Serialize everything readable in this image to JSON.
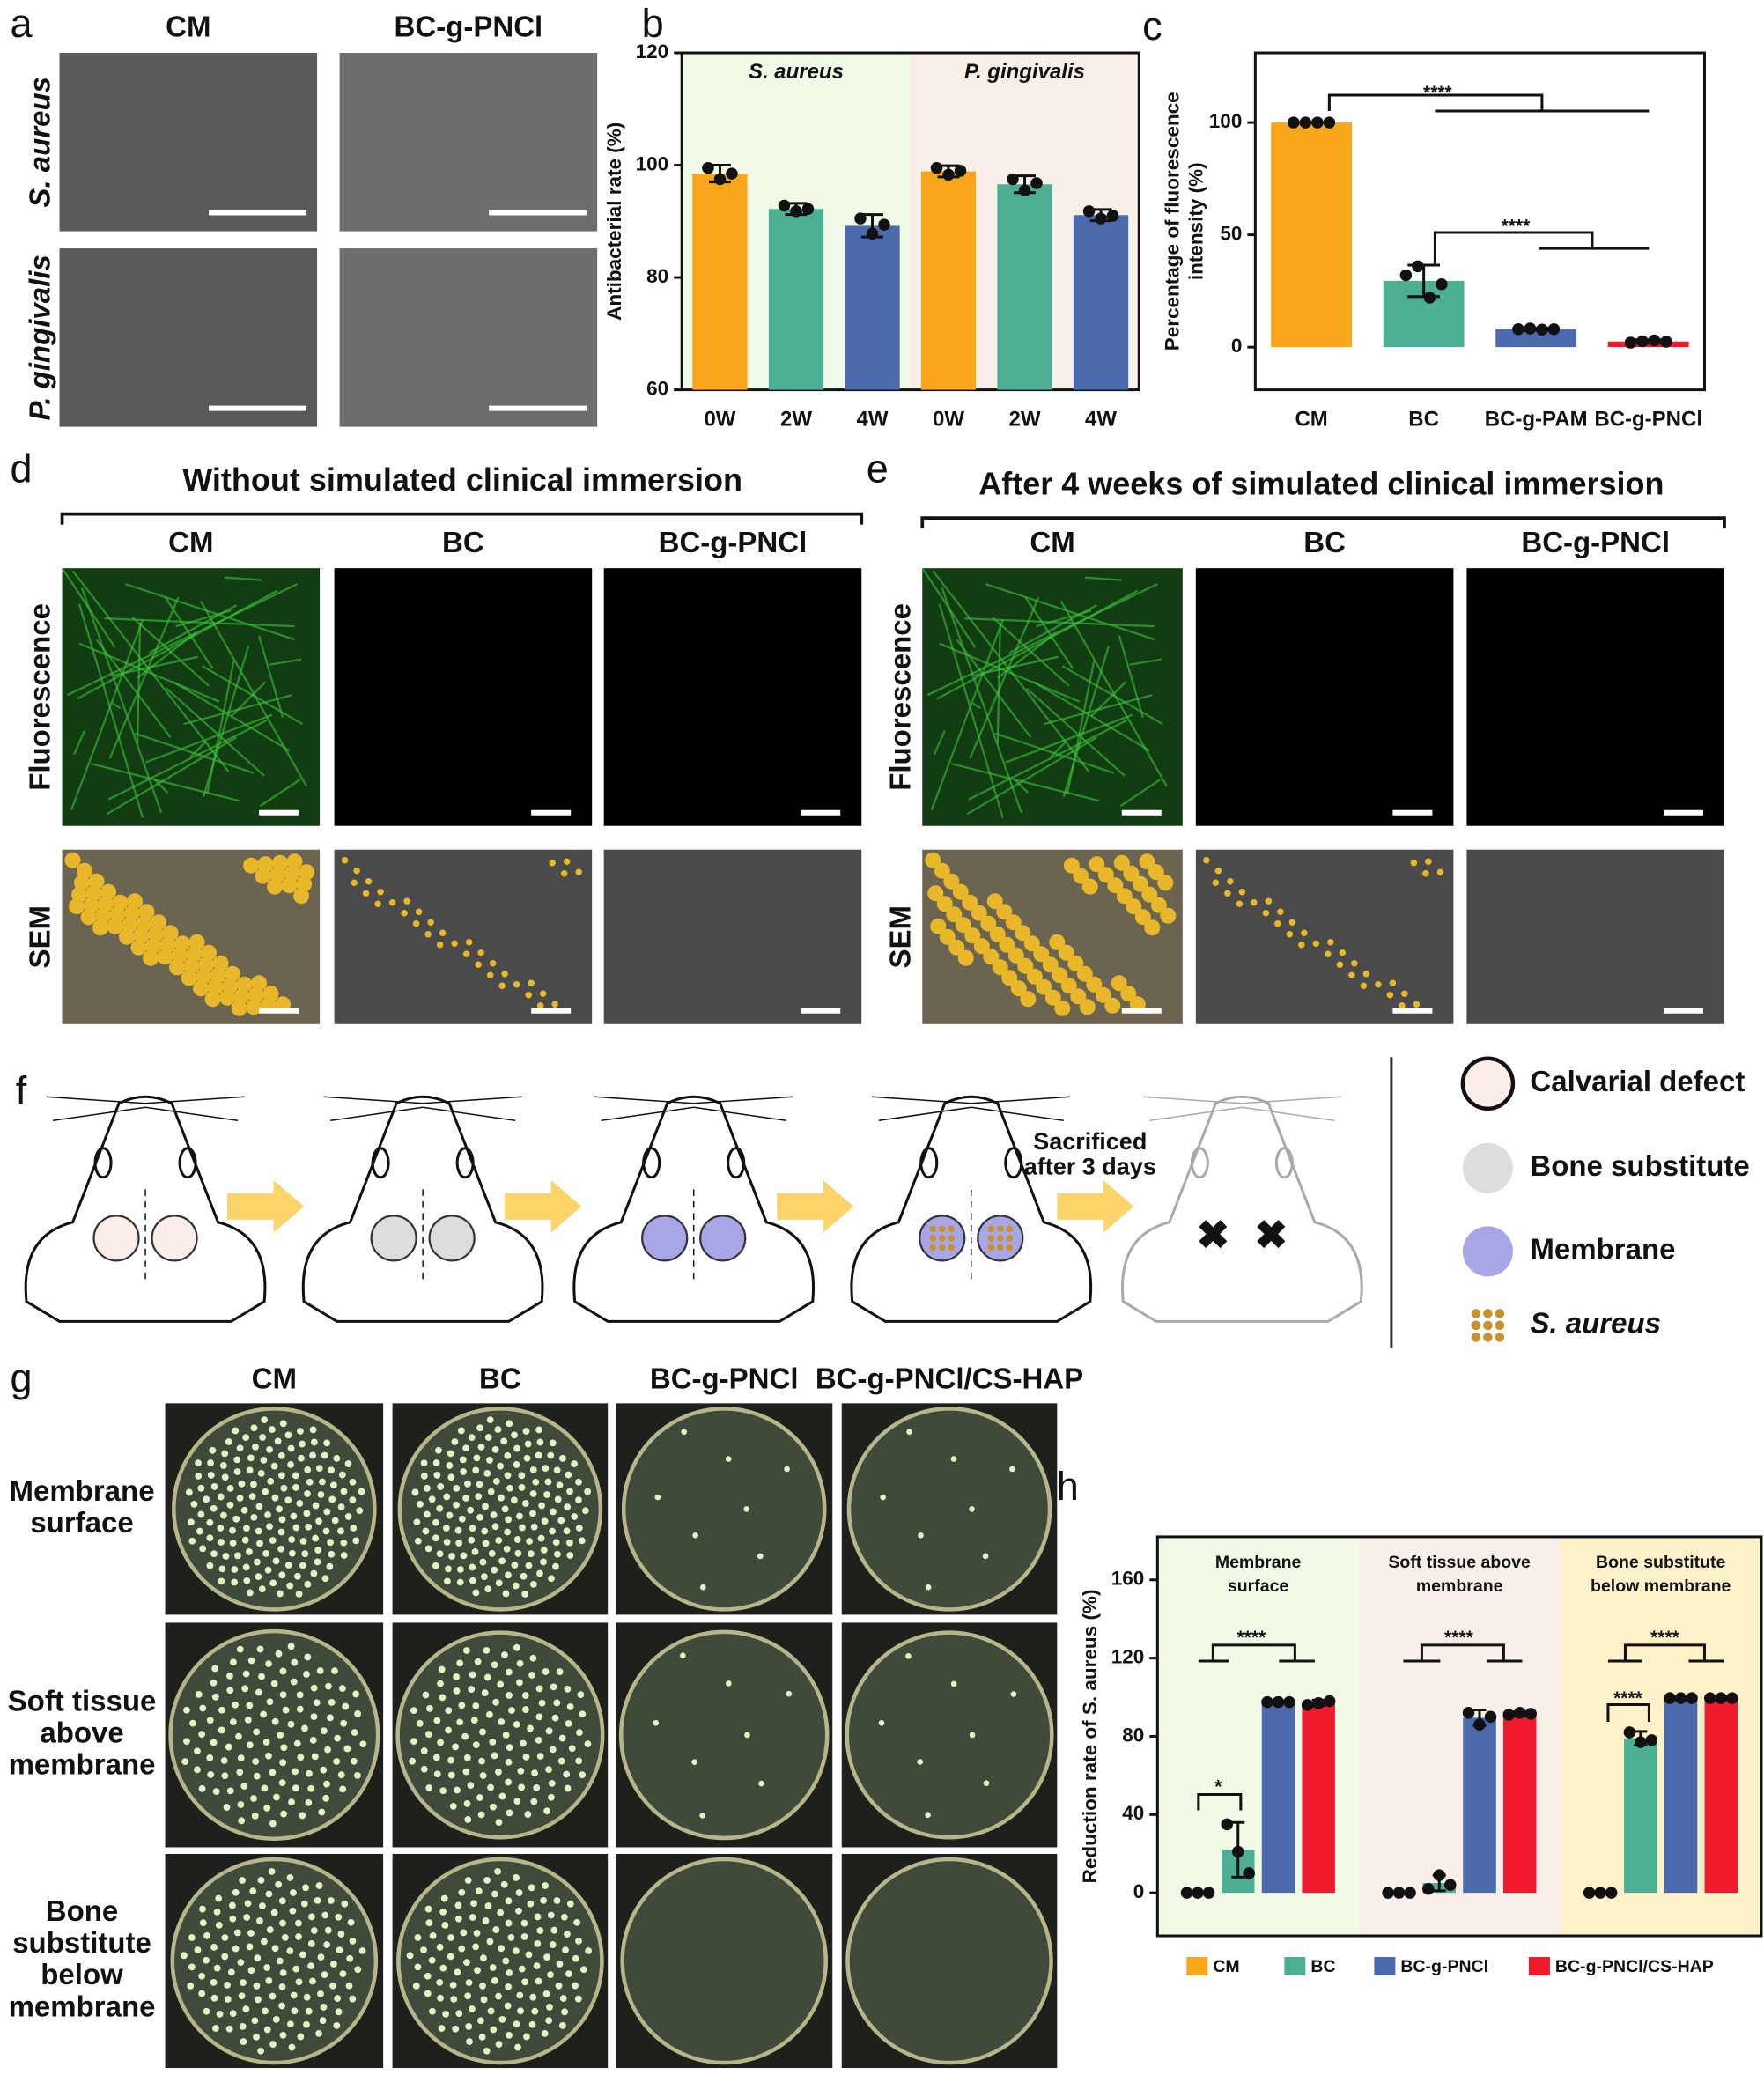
{
  "panel_labels": [
    "a",
    "b",
    "c",
    "d",
    "e",
    "f",
    "g",
    "h"
  ],
  "a": {
    "columns": [
      "CM",
      "BC-g-PNCl"
    ],
    "rows": [
      "S. aureus",
      "P. gingivalis"
    ]
  },
  "d": {
    "title": "Without simulated clinical immersion",
    "columns": [
      "CM",
      "BC",
      "BC-g-PNCl"
    ],
    "rows": [
      "Fluorescence",
      "SEM"
    ]
  },
  "e": {
    "title": "After 4 weeks of simulated clinical immersion",
    "columns": [
      "CM",
      "BC",
      "BC-g-PNCl"
    ],
    "rows": [
      "Fluorescence",
      "SEM"
    ]
  },
  "f": {
    "step_label": [
      "Sacrificed",
      "after 3 days"
    ],
    "legend": [
      "Calvarial defect",
      "Bone substitute",
      "Membrane",
      "S. aureus"
    ]
  },
  "g": {
    "columns": [
      "CM",
      "BC",
      "BC-g-PNCl",
      "BC-g-PNCl/CS-HAP"
    ],
    "rows": [
      [
        "Membrane",
        "surface"
      ],
      [
        "Soft tissue",
        "above",
        "membrane"
      ],
      [
        "Bone",
        "substitute",
        "below",
        "membrane"
      ]
    ]
  },
  "chart_data": [
    {
      "type": "bar",
      "ylabel": "Antibacterial rate (%)",
      "groups": [
        "S. aureus",
        "P. gingivalis"
      ],
      "backgrounds": [
        "#f1fae6",
        "#f8efe9"
      ],
      "categories": [
        "0W",
        "2W",
        "4W",
        "0W",
        "2W",
        "4W"
      ],
      "values": [
        98.5,
        92.2,
        89.2,
        98.9,
        96.6,
        91.1
      ],
      "errors": [
        1.5,
        1,
        2,
        1,
        1.5,
        1
      ],
      "points": [
        [
          99.5,
          97.5,
          98.5
        ],
        [
          92.8,
          91.8,
          92.2
        ],
        [
          90.5,
          87.8,
          89.4
        ],
        [
          99.5,
          98.3,
          99
        ],
        [
          97.5,
          95.5,
          96.8
        ],
        [
          91.8,
          90.5,
          91
        ]
      ],
      "colors": [
        "#f9a61a",
        "#4caf94",
        "#4a6aad",
        "#f9a61a",
        "#4caf94",
        "#4a6aad"
      ],
      "ylim": [
        60,
        120
      ],
      "yticks": [
        60,
        80,
        100,
        120
      ]
    },
    {
      "type": "bar",
      "ylabel": [
        "Percentage of fluorescence",
        "intensity (%)"
      ],
      "categories": [
        "CM",
        "BC",
        "BC-g-PAM",
        "BC-g-PNCl"
      ],
      "values": [
        100,
        29.5,
        8,
        2.5
      ],
      "errors": [
        0,
        7,
        0.5,
        0.8
      ],
      "points": [
        [
          100,
          100,
          100,
          100
        ],
        [
          32,
          36,
          22,
          28
        ],
        [
          8,
          8.3,
          7.8,
          8
        ],
        [
          2,
          2.6,
          3,
          2.4
        ]
      ],
      "colors": [
        "#f9a61a",
        "#4caf94",
        "#4a6aad",
        "#f0192e"
      ],
      "ylim": [
        -19,
        131
      ],
      "yticks": [
        0,
        50,
        100
      ],
      "annotations": [
        "****",
        "****"
      ]
    },
    {
      "type": "bar",
      "ylabel": "Reduction rate of S. aureus (%)",
      "categories": [
        [
          "Membrane",
          "surface"
        ],
        [
          "Soft tissue above",
          "membrane"
        ],
        [
          "Bone substitute",
          "below membrane"
        ]
      ],
      "backgrounds": [
        "#f1fae6",
        "#f8efe9",
        "#fcf1c8"
      ],
      "series": [
        {
          "name": "CM",
          "color": "#f9a61a",
          "values": [
            0,
            0,
            0
          ],
          "errors": [
            0,
            0,
            0
          ],
          "points": [
            [
              0,
              0,
              0
            ],
            [
              0,
              0,
              0
            ],
            [
              0,
              0,
              0
            ]
          ]
        },
        {
          "name": "BC",
          "color": "#4caf94",
          "values": [
            22,
            5,
            79
          ],
          "errors": [
            14,
            4,
            3.5
          ],
          "points": [
            [
              35,
              21,
              10
            ],
            [
              2,
              9,
              4
            ],
            [
              82,
              77,
              78
            ]
          ]
        },
        {
          "name": "BC-g-PNCl",
          "color": "#4a6aad",
          "values": [
            97.5,
            89.5,
            99.5
          ],
          "errors": [
            0.5,
            4,
            0.3
          ],
          "points": [
            [
              97.5,
              97.5,
              97.5
            ],
            [
              92,
              86,
              90
            ],
            [
              99.5,
              99.5,
              99.5
            ]
          ]
        },
        {
          "name": "BC-g-PNCl/CS-HAP",
          "color": "#f0192e",
          "values": [
            97,
            91.5,
            99.5
          ],
          "errors": [
            1.5,
            1,
            0.3
          ],
          "points": [
            [
              96,
              97,
              98
            ],
            [
              91,
              92,
              91.5
            ],
            [
              99.5,
              99.5,
              99.5
            ]
          ]
        }
      ],
      "ylim": [
        -22,
        182
      ],
      "yticks": [
        0,
        40,
        80,
        120,
        160
      ],
      "annotations": [
        "****",
        "*",
        "****",
        "****",
        "****"
      ]
    }
  ]
}
